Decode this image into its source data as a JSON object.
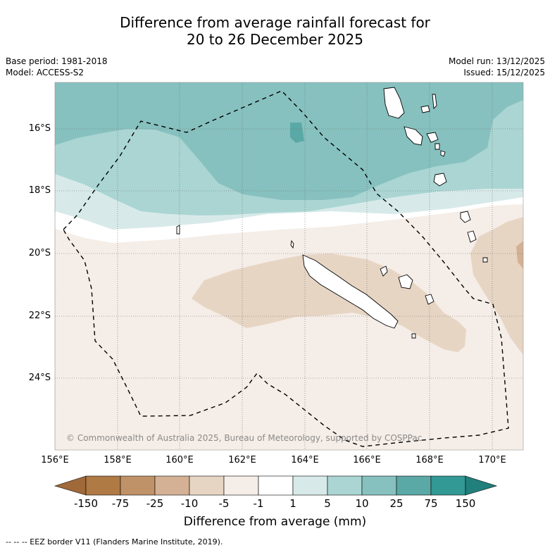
{
  "title": {
    "line1": "Difference from average rainfall forecast for",
    "line2": "20 to 26 December 2025"
  },
  "left_meta": {
    "base_period": "Base period: 1981-2018",
    "model": "Model: ACCESS-S2"
  },
  "right_meta": {
    "model_run": "Model run: 13/12/2025",
    "issued": "Issued: 15/12/2025"
  },
  "map": {
    "latitude_labels": [
      "16°S",
      "18°S",
      "20°S",
      "22°S",
      "24°S"
    ],
    "longitude_labels": [
      "156°E",
      "158°E",
      "160°E",
      "162°E",
      "164°E",
      "166°E",
      "168°E",
      "170°E"
    ],
    "copyright": "© Commonwealth of Australia 2025, Bureau of Meteorology, supported by COSPPac"
  },
  "colorbar": {
    "tick_labels": [
      "-150",
      "-75",
      "-25",
      "-10",
      "-5",
      "-1",
      "1",
      "5",
      "10",
      "25",
      "75",
      "150"
    ],
    "colors": [
      "#a0693a",
      "#b07a45",
      "#c09268",
      "#d4b194",
      "#e7d5c4",
      "#f5ede7",
      "#ffffff",
      "#d7eae9",
      "#aad5d3",
      "#86c1bf",
      "#5aa9a7",
      "#329995",
      "#217f7c"
    ],
    "title": "Difference from average (mm)"
  },
  "footnote": "--  --  -- EEZ border V11 (Flanders Marine Institute, 2019)."
}
